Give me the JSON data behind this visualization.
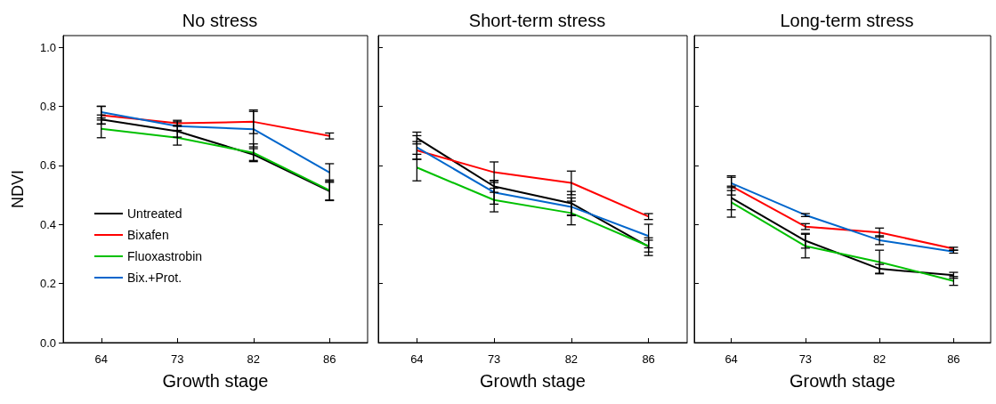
{
  "chart_data": [
    {
      "type": "line",
      "title": "No stress",
      "xlabel": "Growth stage",
      "ylabel": "NDVI",
      "categories": [
        "64",
        "73",
        "82",
        "86"
      ],
      "ylim": [
        0,
        1.04
      ],
      "yticks": [
        {
          "value": 0,
          "label": "0.0"
        },
        0.2,
        0.4,
        0.6,
        0.8,
        {
          "value": 1,
          "label": "1.0"
        }
      ],
      "legend": "bottom left",
      "marker": "none",
      "line_style": "solid",
      "grid": false,
      "series": [
        {
          "name": "Untreated",
          "color": "#000000",
          "values": [
            0.756,
            0.716,
            0.637,
            0.513
          ],
          "errors": [
            0.015,
            0.02,
            0.02,
            0.03
          ]
        },
        {
          "name": "Bixafen",
          "color": "#ff0000",
          "values": [
            0.77,
            0.743,
            0.748,
            0.7
          ],
          "errors": [
            0.03,
            0.01,
            0.04,
            0.01
          ]
        },
        {
          "name": "Fluoxastrobin",
          "color": "#00c000",
          "values": [
            0.724,
            0.694,
            0.643,
            0.516
          ],
          "errors": [
            0.03,
            0.025,
            0.03,
            0.035
          ]
        },
        {
          "name": "Bix.+Prot.",
          "color": "#0066cc",
          "values": [
            0.781,
            0.733,
            0.723,
            0.576
          ],
          "errors": [
            0.02,
            0.015,
            0.06,
            0.03
          ]
        }
      ]
    },
    {
      "type": "line",
      "title": "Short-term stress",
      "xlabel": "Growth stage",
      "categories": [
        "64",
        "73",
        "82",
        "86"
      ],
      "ylim": [
        0,
        1.04
      ],
      "yticks": [
        {
          "value": 0,
          "label": null
        },
        {
          "value": 0.2,
          "label": null
        },
        {
          "value": 0.4,
          "label": null
        },
        {
          "value": 0.6,
          "label": null
        },
        {
          "value": 0.8,
          "label": null
        },
        {
          "value": 1,
          "label": null
        }
      ],
      "tick_labels": "x",
      "marker": "none",
      "line_style": "solid",
      "grid": false,
      "series": [
        {
          "color": "#000000",
          "values": [
            0.693,
            0.529,
            0.472,
            0.325
          ],
          "errors": [
            0.02,
            0.02,
            0.04,
            0.03
          ]
        },
        {
          "color": "#ff0000",
          "values": [
            0.651,
            0.577,
            0.541,
            0.427
          ],
          "errors": [
            0.03,
            0.035,
            0.04,
            0.01
          ]
        },
        {
          "color": "#00c000",
          "values": [
            0.593,
            0.483,
            0.439,
            0.327
          ],
          "errors": [
            0.045,
            0.04,
            0.04,
            0.02
          ]
        },
        {
          "color": "#0066cc",
          "values": [
            0.661,
            0.509,
            0.46,
            0.361
          ],
          "errors": [
            0.04,
            0.04,
            0.03,
            0.04
          ]
        }
      ]
    },
    {
      "type": "line",
      "title": "Long-term stress",
      "xlabel": "Growth stage",
      "categories": [
        "64",
        "73",
        "82",
        "86"
      ],
      "ylim": [
        0,
        1.04
      ],
      "yticks": [
        {
          "value": 0,
          "label": null
        },
        {
          "value": 0.2,
          "label": null
        },
        {
          "value": 0.4,
          "label": null
        },
        {
          "value": 0.6,
          "label": null
        },
        {
          "value": 0.8,
          "label": null
        },
        {
          "value": 1,
          "label": null
        }
      ],
      "tick_labels": "x",
      "marker": "none",
      "line_style": "solid",
      "grid": false,
      "series": [
        {
          "color": "#000000",
          "values": [
            0.49,
            0.345,
            0.25,
            0.228
          ],
          "errors": [
            0.04,
            0.025,
            0.015,
            0.01
          ]
        },
        {
          "color": "#ff0000",
          "values": [
            0.53,
            0.393,
            0.373,
            0.318
          ],
          "errors": [
            0.03,
            0.01,
            0.015,
            0.005
          ]
        },
        {
          "color": "#00c000",
          "values": [
            0.475,
            0.327,
            0.273,
            0.209
          ],
          "errors": [
            0.05,
            0.04,
            0.04,
            0.015
          ]
        },
        {
          "color": "#0066cc",
          "values": [
            0.54,
            0.432,
            0.347,
            0.308
          ],
          "errors": [
            0.025,
            0.005,
            0.015,
            0.005
          ]
        }
      ]
    }
  ]
}
